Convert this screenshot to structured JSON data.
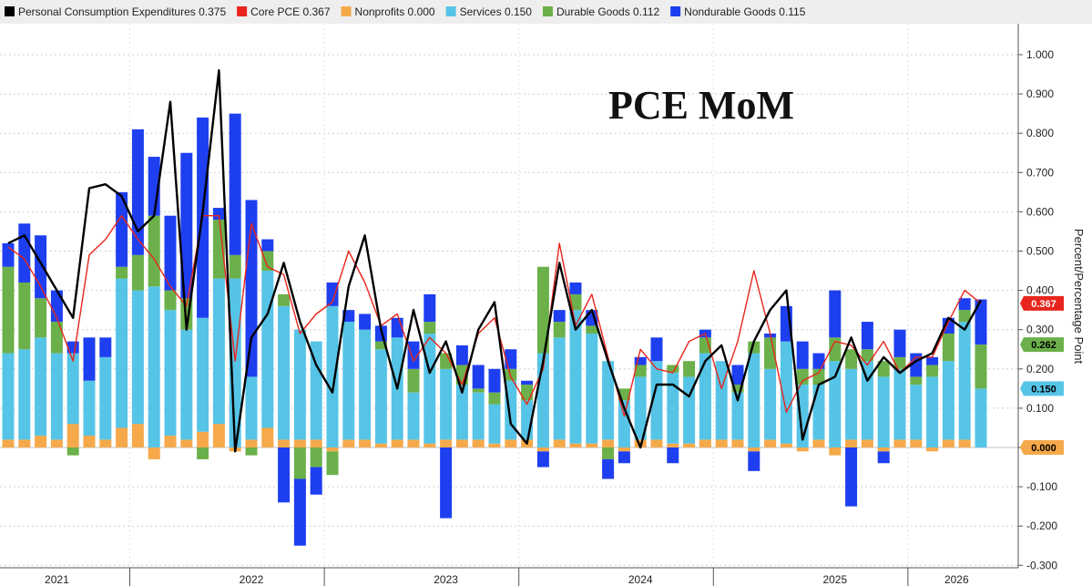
{
  "chart_data": {
    "type": "bar",
    "title": "PCE MoM",
    "ylabel": "Percent/Percentage Point",
    "ylim": [
      -0.3,
      1.05
    ],
    "yticks": [
      1.0,
      0.9,
      0.8,
      0.7,
      0.6,
      0.5,
      0.4,
      0.3,
      0.2,
      0.1,
      0.0,
      -0.1,
      -0.2,
      -0.3
    ],
    "ytick_labels": [
      "1.000",
      "0.900",
      "0.800",
      "0.700",
      "0.600",
      "0.500",
      "0.400",
      "0.300",
      "0.200",
      "0.100",
      "0.000",
      "-0.100",
      "-0.200",
      "-0.300"
    ],
    "year_labels": [
      {
        "label": "2021",
        "month_index": 3
      },
      {
        "label": "2022",
        "month_index": 15
      },
      {
        "label": "2023",
        "month_index": 27
      },
      {
        "label": "2024",
        "month_index": 39
      },
      {
        "label": "2025",
        "month_index": 51
      },
      {
        "label": "2026",
        "month_index": 58.5
      }
    ],
    "year_dividers": [
      7.5,
      19.5,
      31.5,
      43.5,
      55.5
    ],
    "legend_position": "top",
    "legend": [
      {
        "name": "Personal Consumption Expenditures",
        "value": "0.375",
        "color": "#000000"
      },
      {
        "name": "Core PCE",
        "value": "0.367",
        "color": "#e8251d"
      },
      {
        "name": "Nonprofits",
        "value": "0.000",
        "color": "#f5a94a"
      },
      {
        "name": "Services",
        "value": "0.150",
        "color": "#56c4e6"
      },
      {
        "name": "Durable Goods",
        "value": "0.112",
        "color": "#6bb04a"
      },
      {
        "name": "Nondurable Goods",
        "value": "0.115",
        "color": "#1e3ff0"
      }
    ],
    "end_tags": [
      {
        "value": 0.367,
        "label": "0.367",
        "bg": "#e8251d",
        "fg": "#ffffff"
      },
      {
        "value": 0.262,
        "label": "0.262",
        "bg": "#6bb04a",
        "fg": "#000000"
      },
      {
        "value": 0.15,
        "label": "0.150",
        "bg": "#56c4e6",
        "fg": "#000000"
      },
      {
        "value": 0.0,
        "label": "0.000",
        "bg": "#f5a94a",
        "fg": "#000000"
      }
    ],
    "series": [
      {
        "name": "Nonprofits",
        "color": "#f5a94a",
        "values": [
          0.02,
          0.02,
          0.03,
          0.02,
          0.06,
          0.03,
          0.02,
          0.05,
          0.06,
          -0.03,
          0.03,
          0.02,
          0.04,
          0.06,
          -0.01,
          0.02,
          0.05,
          0.02,
          0.02,
          0.02,
          -0.01,
          0.02,
          0.02,
          0.01,
          0.02,
          0.02,
          0.01,
          0.02,
          0.02,
          0.02,
          0.01,
          0.02,
          0.02,
          -0.01,
          0.02,
          0.01,
          0.01,
          0.02,
          -0.01,
          0.02,
          0.02,
          0.01,
          0.01,
          0.02,
          0.02,
          0.02,
          -0.01,
          0.02,
          0.01,
          -0.01,
          0.02,
          -0.02,
          0.02,
          0.02,
          -0.01,
          0.02,
          0.02,
          -0.01,
          0.02,
          0.02,
          0.0
        ]
      },
      {
        "name": "Services",
        "color": "#56c4e6",
        "values": [
          0.22,
          0.23,
          0.25,
          0.22,
          0.18,
          0.14,
          0.21,
          0.38,
          0.34,
          0.41,
          0.32,
          0.28,
          0.29,
          0.37,
          0.43,
          0.16,
          0.4,
          0.34,
          0.28,
          0.25,
          0.36,
          0.3,
          0.28,
          0.24,
          0.26,
          0.12,
          0.28,
          0.18,
          0.14,
          0.12,
          0.1,
          0.15,
          0.1,
          0.24,
          0.26,
          0.34,
          0.28,
          0.2,
          0.12,
          0.16,
          0.2,
          0.18,
          0.17,
          0.22,
          0.2,
          0.12,
          0.24,
          0.18,
          0.26,
          0.16,
          0.14,
          0.22,
          0.18,
          0.2,
          0.18,
          0.18,
          0.14,
          0.18,
          0.2,
          0.3,
          0.15
        ]
      },
      {
        "name": "Durable Goods",
        "color": "#6bb04a",
        "values": [
          0.22,
          0.17,
          0.1,
          0.08,
          -0.02,
          0.0,
          0.0,
          0.03,
          0.09,
          0.18,
          0.05,
          0.08,
          -0.03,
          0.15,
          0.06,
          -0.02,
          0.05,
          0.03,
          -0.08,
          -0.05,
          -0.06,
          0.0,
          0.0,
          0.02,
          0.0,
          0.06,
          0.03,
          0.04,
          0.05,
          0.01,
          0.03,
          0.03,
          0.04,
          0.22,
          0.04,
          0.04,
          0.02,
          -0.03,
          0.03,
          0.03,
          0.0,
          0.02,
          0.04,
          0.04,
          0.0,
          0.02,
          0.03,
          0.08,
          0.0,
          0.04,
          0.04,
          0.06,
          0.05,
          0.03,
          0.04,
          0.03,
          0.02,
          0.03,
          0.07,
          0.03,
          0.112
        ]
      },
      {
        "name": "Nondurable Goods",
        "color": "#1e3ff0",
        "values": [
          0.06,
          0.15,
          0.16,
          0.08,
          0.03,
          0.11,
          0.05,
          0.19,
          0.32,
          0.15,
          0.19,
          0.37,
          0.51,
          0.03,
          0.36,
          0.45,
          0.03,
          -0.14,
          -0.17,
          -0.07,
          0.06,
          0.03,
          0.04,
          0.04,
          0.05,
          0.07,
          0.07,
          -0.18,
          0.05,
          0.06,
          0.06,
          0.05,
          0.01,
          -0.04,
          0.03,
          0.03,
          0.04,
          -0.05,
          -0.03,
          0.02,
          0.06,
          -0.04,
          0.0,
          0.02,
          0.0,
          0.05,
          -0.05,
          0.01,
          0.09,
          0.07,
          0.04,
          0.12,
          -0.15,
          0.07,
          -0.03,
          0.07,
          0.06,
          0.02,
          0.04,
          0.03,
          0.115
        ]
      },
      {
        "name": "Personal Consumption Expenditures",
        "color": "#000000",
        "values": [
          0.52,
          0.54,
          0.47,
          0.4,
          0.33,
          0.66,
          0.67,
          0.64,
          0.55,
          0.59,
          0.88,
          0.3,
          0.6,
          0.96,
          -0.01,
          0.28,
          0.34,
          0.47,
          0.32,
          0.21,
          0.14,
          0.41,
          0.54,
          0.3,
          0.15,
          0.35,
          0.19,
          0.27,
          0.14,
          0.3,
          0.37,
          0.06,
          0.01,
          0.22,
          0.47,
          0.3,
          0.35,
          0.22,
          0.1,
          0.0,
          0.16,
          0.16,
          0.13,
          0.22,
          0.26,
          0.12,
          0.27,
          0.35,
          0.4,
          0.02,
          0.16,
          0.18,
          0.28,
          0.17,
          0.23,
          0.19,
          0.22,
          0.24,
          0.33,
          0.3,
          0.375
        ]
      },
      {
        "name": "Core PCE",
        "color": "#e8251d",
        "values": [
          0.51,
          0.48,
          0.41,
          0.33,
          0.22,
          0.49,
          0.53,
          0.59,
          0.53,
          0.48,
          0.41,
          0.36,
          0.59,
          0.59,
          0.22,
          0.57,
          0.46,
          0.44,
          0.29,
          0.34,
          0.37,
          0.5,
          0.42,
          0.31,
          0.34,
          0.22,
          0.28,
          0.24,
          0.16,
          0.29,
          0.33,
          0.18,
          0.11,
          0.2,
          0.52,
          0.31,
          0.39,
          0.23,
          0.08,
          0.25,
          0.2,
          0.19,
          0.27,
          0.29,
          0.15,
          0.27,
          0.45,
          0.29,
          0.09,
          0.17,
          0.19,
          0.27,
          0.26,
          0.21,
          0.27,
          0.19,
          0.23,
          0.23,
          0.32,
          0.4,
          0.367
        ]
      }
    ]
  }
}
